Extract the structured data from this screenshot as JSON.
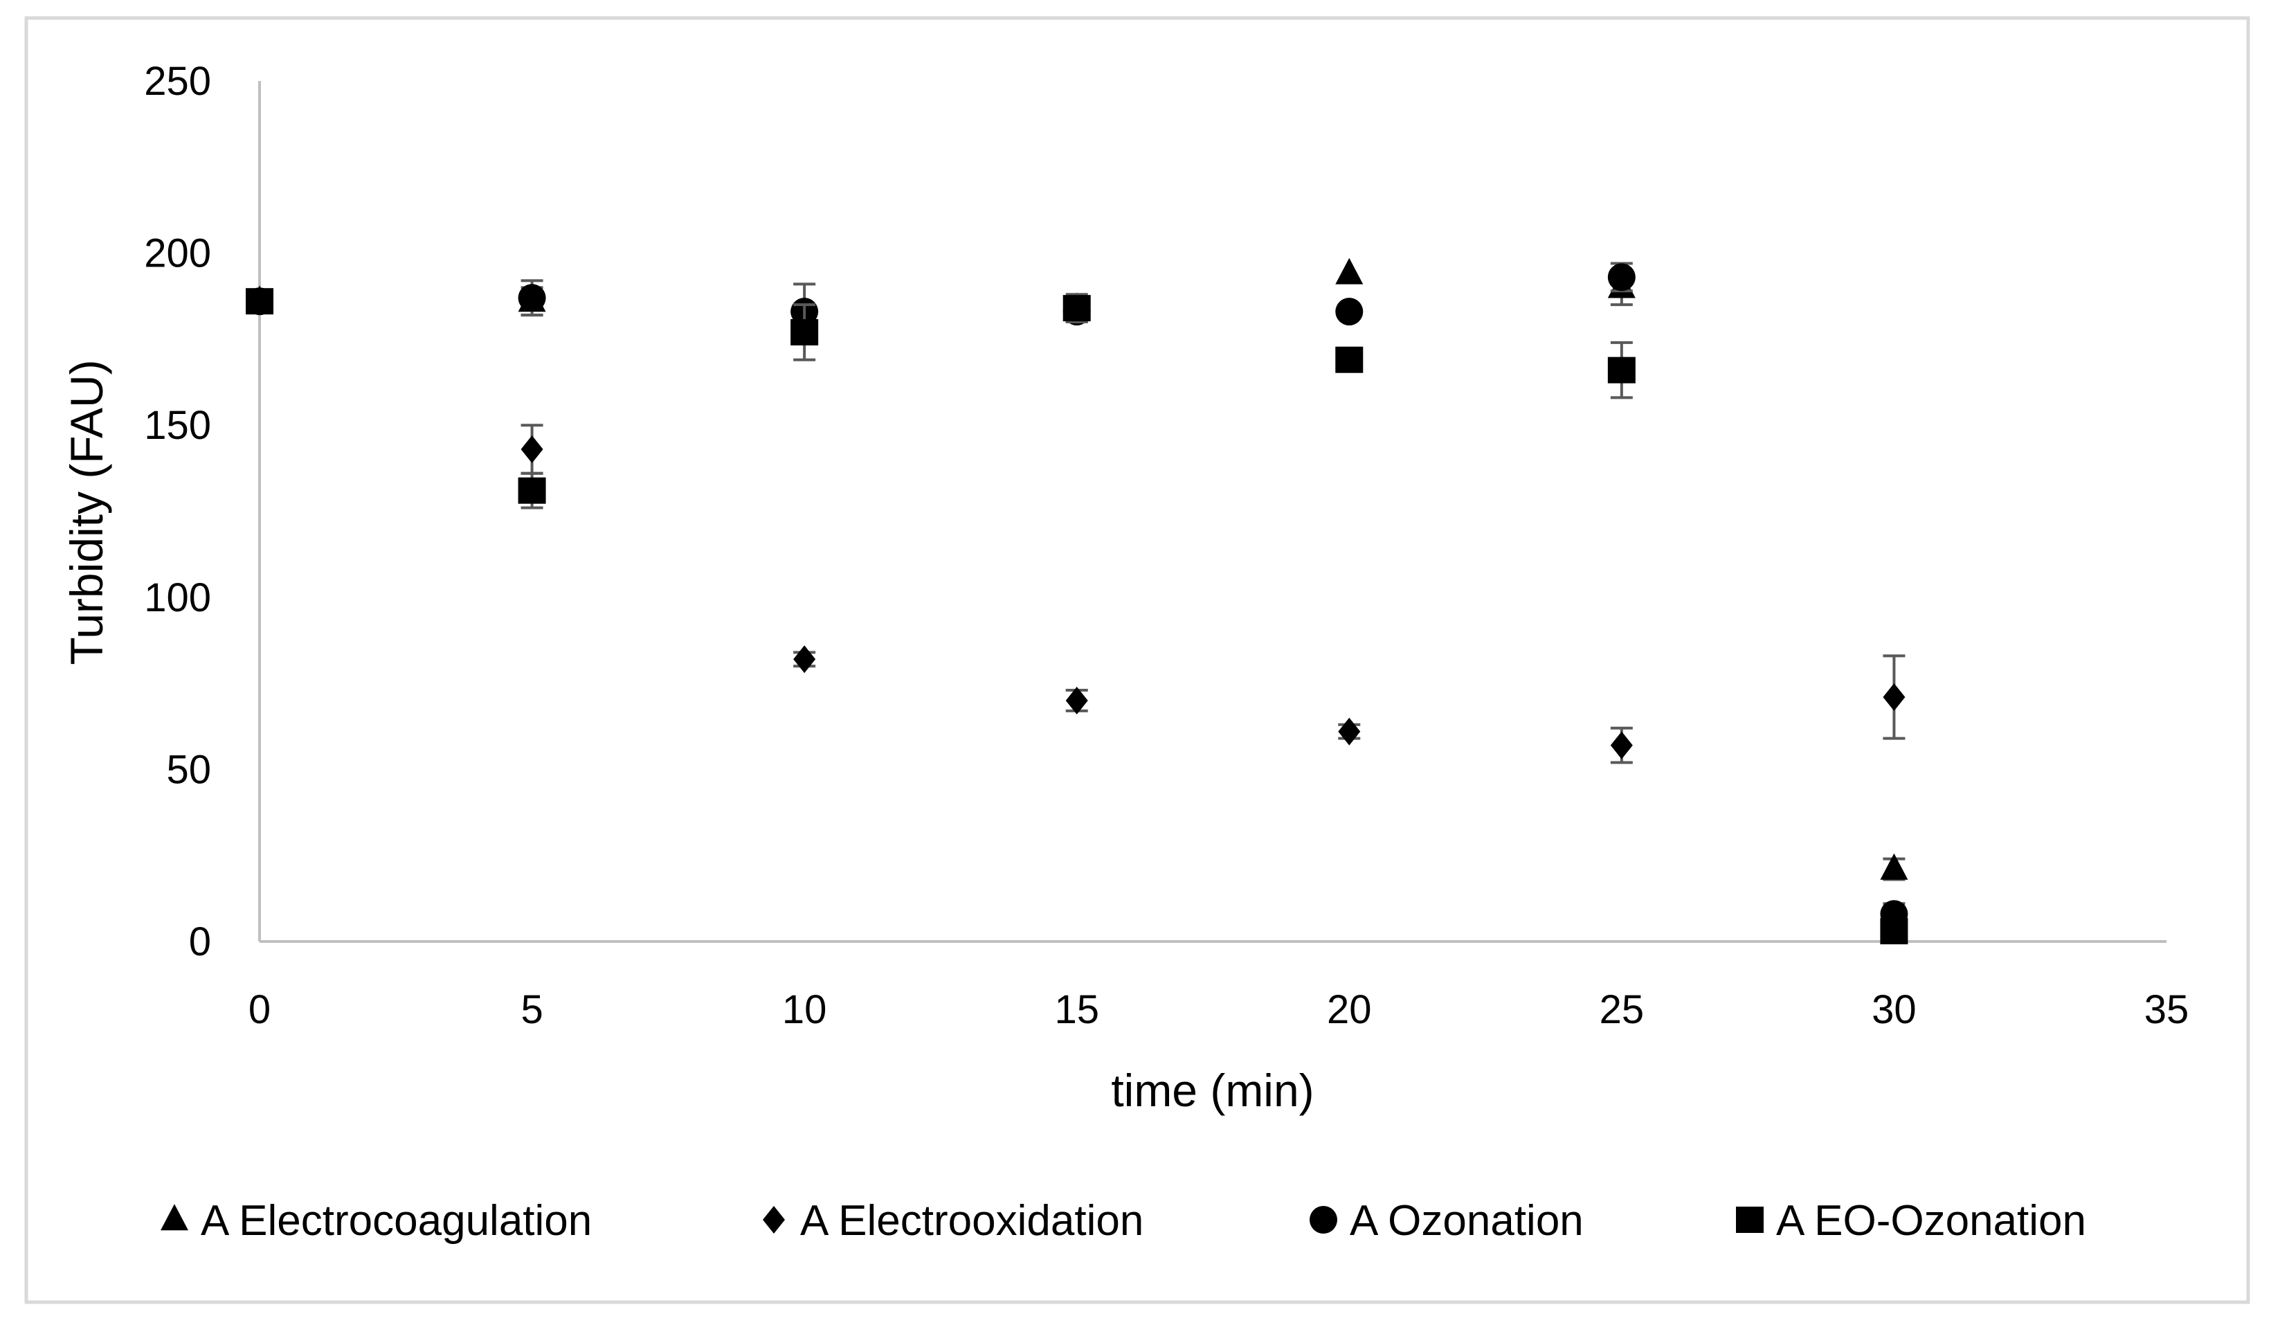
{
  "chart_data": {
    "type": "scatter",
    "title": "",
    "xlabel": "time (min)",
    "ylabel": "Turbidity (FAU)",
    "xlim": [
      0,
      35
    ],
    "ylim": [
      0,
      250
    ],
    "xticks": [
      0,
      5,
      10,
      15,
      20,
      25,
      30,
      35
    ],
    "yticks": [
      0,
      50,
      100,
      150,
      200,
      250
    ],
    "grid": false,
    "legend_position": "bottom",
    "series": [
      {
        "name": "A Electrocoagulation",
        "marker": "triangle",
        "color": "#000000",
        "x": [
          0,
          5,
          10,
          15,
          20,
          25,
          30
        ],
        "y": [
          186,
          186,
          181,
          184,
          194,
          190,
          21
        ],
        "err": [
          0,
          4,
          3,
          3,
          0,
          5,
          3
        ]
      },
      {
        "name": "A Electrooxidation",
        "marker": "diamond",
        "color": "#000000",
        "x": [
          0,
          5,
          10,
          15,
          20,
          25,
          30
        ],
        "y": [
          186,
          143,
          82,
          70,
          61,
          57,
          71
        ],
        "err": [
          0,
          7,
          2,
          3,
          2,
          5,
          12
        ]
      },
      {
        "name": "A Ozonation",
        "marker": "circle",
        "color": "#000000",
        "x": [
          0,
          5,
          10,
          15,
          20,
          25,
          30
        ],
        "y": [
          186,
          187,
          183,
          183,
          183,
          193,
          8
        ],
        "err": [
          0,
          5,
          8,
          3,
          0,
          4,
          3
        ]
      },
      {
        "name": "A EO-Ozonation",
        "marker": "square",
        "color": "#000000",
        "x": [
          0,
          5,
          10,
          15,
          20,
          25,
          30
        ],
        "y": [
          186,
          131,
          177,
          184,
          169,
          166,
          3
        ],
        "err": [
          0,
          5,
          8,
          4,
          0,
          8,
          2
        ]
      }
    ]
  }
}
